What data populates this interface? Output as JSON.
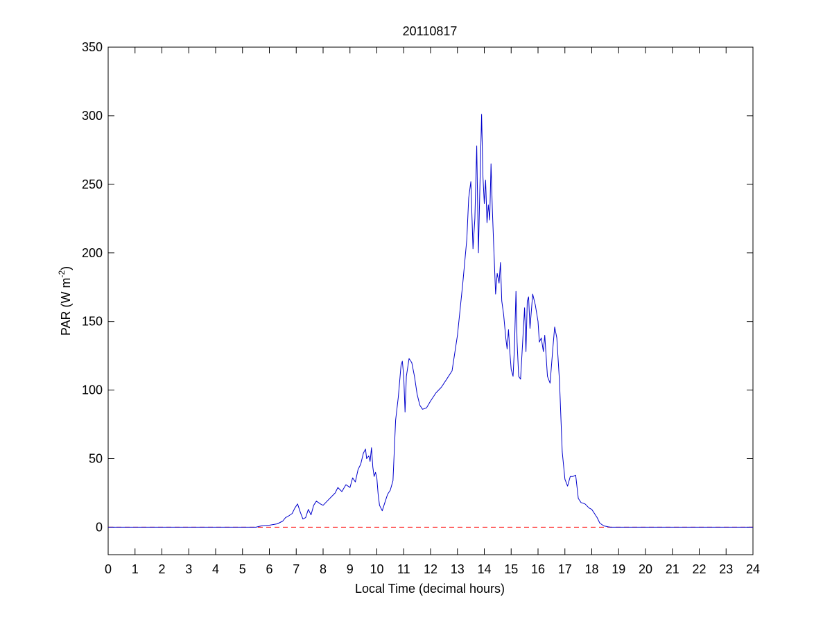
{
  "chart_data": {
    "type": "line",
    "title": "20110817",
    "xlabel": "Local Time (decimal hours)",
    "ylabel": {
      "prefix": "PAR (W m",
      "superscript": "-2",
      "suffix": ")"
    },
    "xlim": [
      0,
      24
    ],
    "ylim": [
      -20,
      350
    ],
    "xticks": [
      0,
      1,
      2,
      3,
      4,
      5,
      6,
      7,
      8,
      9,
      10,
      11,
      12,
      13,
      14,
      15,
      16,
      17,
      18,
      19,
      20,
      21,
      22,
      23,
      24
    ],
    "yticks": [
      0,
      50,
      100,
      150,
      200,
      250,
      300,
      350
    ],
    "grid": false,
    "colors": {
      "series": "#0000cc",
      "reference": "#ff0000",
      "axes": "#000000"
    },
    "series": [
      {
        "values": [
          [
            0,
            0
          ],
          [
            5.5,
            0
          ],
          [
            5.7,
            1
          ],
          [
            6.0,
            1.5
          ],
          [
            6.3,
            2.5
          ],
          [
            6.5,
            4.5
          ],
          [
            6.6,
            7
          ],
          [
            6.7,
            8
          ],
          [
            6.85,
            10
          ],
          [
            6.95,
            14
          ],
          [
            7.05,
            17
          ],
          [
            7.15,
            11
          ],
          [
            7.25,
            6
          ],
          [
            7.35,
            7
          ],
          [
            7.45,
            13
          ],
          [
            7.55,
            9
          ],
          [
            7.65,
            16
          ],
          [
            7.75,
            19
          ],
          [
            7.9,
            17
          ],
          [
            8.0,
            16
          ],
          [
            8.15,
            19
          ],
          [
            8.3,
            22
          ],
          [
            8.45,
            25
          ],
          [
            8.55,
            29
          ],
          [
            8.7,
            26
          ],
          [
            8.85,
            31
          ],
          [
            9.0,
            29
          ],
          [
            9.1,
            36
          ],
          [
            9.2,
            33
          ],
          [
            9.3,
            42
          ],
          [
            9.4,
            46
          ],
          [
            9.5,
            54
          ],
          [
            9.58,
            57
          ],
          [
            9.62,
            50
          ],
          [
            9.7,
            52
          ],
          [
            9.75,
            48
          ],
          [
            9.8,
            58
          ],
          [
            9.85,
            44
          ],
          [
            9.9,
            37
          ],
          [
            9.95,
            40
          ],
          [
            10.0,
            36
          ],
          [
            10.05,
            24
          ],
          [
            10.1,
            16
          ],
          [
            10.2,
            12
          ],
          [
            10.3,
            18
          ],
          [
            10.4,
            24
          ],
          [
            10.5,
            27
          ],
          [
            10.6,
            34
          ],
          [
            10.7,
            78
          ],
          [
            10.8,
            95
          ],
          [
            10.9,
            118
          ],
          [
            10.95,
            121
          ],
          [
            11.0,
            110
          ],
          [
            11.05,
            84
          ],
          [
            11.1,
            110
          ],
          [
            11.2,
            123
          ],
          [
            11.3,
            120
          ],
          [
            11.4,
            110
          ],
          [
            11.5,
            97
          ],
          [
            11.6,
            89
          ],
          [
            11.7,
            86
          ],
          [
            11.85,
            87
          ],
          [
            12.0,
            92
          ],
          [
            12.2,
            98
          ],
          [
            12.4,
            102
          ],
          [
            12.6,
            108
          ],
          [
            12.8,
            114
          ],
          [
            13.0,
            140
          ],
          [
            13.2,
            178
          ],
          [
            13.35,
            210
          ],
          [
            13.42,
            240
          ],
          [
            13.5,
            252
          ],
          [
            13.58,
            203
          ],
          [
            13.65,
            225
          ],
          [
            13.72,
            278
          ],
          [
            13.78,
            200
          ],
          [
            13.85,
            260
          ],
          [
            13.9,
            301
          ],
          [
            13.95,
            255
          ],
          [
            14.0,
            236
          ],
          [
            14.05,
            253
          ],
          [
            14.1,
            222
          ],
          [
            14.15,
            235
          ],
          [
            14.2,
            224
          ],
          [
            14.25,
            265
          ],
          [
            14.3,
            232
          ],
          [
            14.35,
            205
          ],
          [
            14.42,
            170
          ],
          [
            14.48,
            185
          ],
          [
            14.55,
            178
          ],
          [
            14.6,
            193
          ],
          [
            14.65,
            165
          ],
          [
            14.72,
            155
          ],
          [
            14.8,
            138
          ],
          [
            14.85,
            130
          ],
          [
            14.9,
            144
          ],
          [
            14.95,
            128
          ],
          [
            15.0,
            115
          ],
          [
            15.07,
            110
          ],
          [
            15.12,
            130
          ],
          [
            15.18,
            172
          ],
          [
            15.22,
            135
          ],
          [
            15.28,
            110
          ],
          [
            15.35,
            108
          ],
          [
            15.42,
            132
          ],
          [
            15.5,
            160
          ],
          [
            15.55,
            128
          ],
          [
            15.6,
            165
          ],
          [
            15.65,
            168
          ],
          [
            15.7,
            145
          ],
          [
            15.8,
            170
          ],
          [
            15.9,
            162
          ],
          [
            16.0,
            150
          ],
          [
            16.05,
            135
          ],
          [
            16.12,
            138
          ],
          [
            16.2,
            128
          ],
          [
            16.25,
            140
          ],
          [
            16.35,
            110
          ],
          [
            16.45,
            105
          ],
          [
            16.55,
            130
          ],
          [
            16.62,
            146
          ],
          [
            16.7,
            138
          ],
          [
            16.8,
            106
          ],
          [
            16.9,
            55
          ],
          [
            17.0,
            35
          ],
          [
            17.1,
            30
          ],
          [
            17.2,
            37
          ],
          [
            17.3,
            37
          ],
          [
            17.4,
            38
          ],
          [
            17.5,
            21
          ],
          [
            17.6,
            18
          ],
          [
            17.75,
            17
          ],
          [
            17.9,
            14
          ],
          [
            18.0,
            13
          ],
          [
            18.1,
            10
          ],
          [
            18.2,
            7
          ],
          [
            18.3,
            3
          ],
          [
            18.45,
            1
          ],
          [
            18.6,
            0.3
          ],
          [
            18.7,
            0
          ],
          [
            24,
            0
          ]
        ]
      },
      {
        "style": "dashed",
        "values": [
          [
            0,
            0
          ],
          [
            24,
            0
          ]
        ]
      }
    ]
  }
}
